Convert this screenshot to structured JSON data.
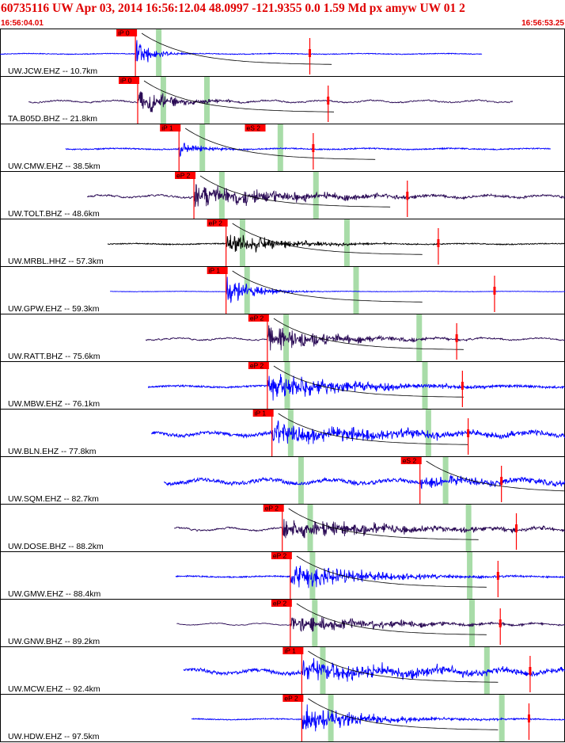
{
  "header": {
    "title": "60735116 UW Apr 03, 2014 16:56:12.04    48.0997 -121.9355  0.0 1.59 Md px amyw UW 01   2",
    "time_start": "16:56:04.01",
    "time_end": "16:56:53.25"
  },
  "colors": {
    "trace_blue": "#0000ff",
    "trace_purple": "#2a0a55",
    "trace_black": "#000000",
    "pick_box": "#ff0000",
    "pick_line": "#ff0000",
    "window_shade": "#a8dca8",
    "frame": "#000000"
  },
  "chart_data": {
    "type": "line",
    "title": "",
    "xlabel": "",
    "ylabel": "",
    "x_range": [
      "16:56:04.01",
      "16:56:53.25"
    ],
    "stations": [
      {
        "label": "UW.JCW.EHZ -- 10.7km",
        "distance_km": 10.7,
        "color": "blue",
        "pick": "iP 0",
        "pick_time_s": 11.8,
        "s_pick": "",
        "trace_start_s": 0.0,
        "trace_end_s": 42.0,
        "noise": 0.08,
        "amp": 1.0,
        "decay": 0.35,
        "freq": 1.3,
        "lp": 0.0,
        "window_times_s": [
          13.8
        ],
        "red_mark_s": 27.0
      },
      {
        "label": "TA.B05D.BHZ -- 21.8km",
        "distance_km": 21.8,
        "color": "purple",
        "pick": "iP 0",
        "pick_time_s": 12.0,
        "s_pick": "",
        "trace_start_s": 2.5,
        "trace_end_s": 44.7,
        "noise": 0.25,
        "amp": 0.8,
        "decay": 0.15,
        "freq": 0.45,
        "lp": 0.6,
        "window_times_s": [
          14.2,
          18.0
        ],
        "red_mark_s": 28.6
      },
      {
        "label": "UW.CMW.EHZ -- 38.5km",
        "distance_km": 38.5,
        "color": "blue",
        "pick": "iP 1",
        "pick_time_s": 15.6,
        "s_pick": "eS 2",
        "s_pick_time_s": 23.0,
        "trace_start_s": 5.7,
        "trace_end_s": 48.0,
        "noise": 0.12,
        "amp": 0.45,
        "decay": 0.25,
        "freq": 1.2,
        "lp": 0.0,
        "window_times_s": [
          17.6,
          24.4
        ],
        "red_mark_s": 27.3
      },
      {
        "label": "UW.TOLT.BHZ -- 48.6km",
        "distance_km": 48.6,
        "color": "purple",
        "pick": "eP 2",
        "pick_time_s": 16.9,
        "s_pick": "",
        "trace_start_s": 7.6,
        "trace_end_s": 50.0,
        "noise": 0.3,
        "amp": 0.7,
        "decay": 0.05,
        "freq": 0.5,
        "lp": 0.5,
        "window_times_s": [
          19.3,
          27.5
        ],
        "red_mark_s": 35.5
      },
      {
        "label": "UW.MRBL.HHZ -- 57.3km",
        "distance_km": 57.3,
        "color": "black",
        "pick": "eP 2",
        "pick_time_s": 19.7,
        "s_pick": "",
        "trace_start_s": 9.4,
        "trace_end_s": 51.6,
        "noise": 0.1,
        "amp": 0.7,
        "decay": 0.1,
        "freq": 1.2,
        "lp": 0.0,
        "window_times_s": [
          21.1,
          30.2
        ],
        "red_mark_s": 38.2
      },
      {
        "label": "UW.GPW.EHZ -- 59.3km",
        "distance_km": 59.3,
        "color": "blue",
        "pick": "iP 1",
        "pick_time_s": 19.7,
        "s_pick": "",
        "trace_start_s": 9.6,
        "trace_end_s": 51.8,
        "noise": 0.04,
        "amp": 0.9,
        "decay": 0.2,
        "freq": 1.3,
        "lp": 0.0,
        "window_times_s": [
          21.5,
          31.0
        ],
        "red_mark_s": 43.1
      },
      {
        "label": "UW.RATT.BHZ -- 75.6km",
        "distance_km": 75.6,
        "color": "purple",
        "pick": "eP 2",
        "pick_time_s": 23.3,
        "s_pick": "",
        "trace_start_s": 12.7,
        "trace_end_s": 55.1,
        "noise": 0.25,
        "amp": 0.75,
        "decay": 0.08,
        "freq": 0.45,
        "lp": 0.6,
        "window_times_s": [
          24.9,
          36.5
        ],
        "red_mark_s": 39.8
      },
      {
        "label": "UW.MBW.EHZ -- 76.1km",
        "distance_km": 76.1,
        "color": "blue",
        "pick": "eP 2",
        "pick_time_s": 23.3,
        "s_pick": "",
        "trace_start_s": 12.9,
        "trace_end_s": 55.2,
        "noise": 0.18,
        "amp": 0.8,
        "decay": 0.06,
        "freq": 1.2,
        "lp": 0.0,
        "window_times_s": [
          25.0,
          37.0
        ],
        "red_mark_s": 40.3
      },
      {
        "label": "UW.BLN.EHZ -- 77.8km",
        "distance_km": 77.8,
        "color": "blue",
        "pick": "iP 1",
        "pick_time_s": 23.7,
        "s_pick": "",
        "trace_start_s": 13.2,
        "trace_end_s": 55.5,
        "noise": 0.45,
        "amp": 0.65,
        "decay": 0.04,
        "freq": 1.0,
        "lp": 0.3,
        "window_times_s": [
          25.3,
          37.3
        ],
        "red_mark_s": 40.8
      },
      {
        "label": "UW.SQM.EHZ -- 82.7km",
        "distance_km": 82.7,
        "color": "blue",
        "pick": "eS 2",
        "pick_time_s": 36.6,
        "s_pick": "",
        "trace_start_s": 14.3,
        "trace_end_s": 56.4,
        "noise": 0.5,
        "amp": 0.3,
        "decay": 0.04,
        "freq": 1.0,
        "lp": 0.3,
        "window_times_s": [
          26.2,
          38.8
        ],
        "red_mark_s": 43.7
      },
      {
        "label": "UW.DOSE.BHZ -- 88.2km",
        "distance_km": 88.2,
        "color": "purple",
        "pick": "eP 2",
        "pick_time_s": 24.6,
        "s_pick": "",
        "trace_start_s": 15.2,
        "trace_end_s": 57.6,
        "noise": 0.32,
        "amp": 0.6,
        "decay": 0.04,
        "freq": 0.5,
        "lp": 0.6,
        "window_times_s": [
          27.0,
          40.8
        ],
        "red_mark_s": 45.0
      },
      {
        "label": "UW.GMW.EHZ -- 88.4km",
        "distance_km": 88.4,
        "color": "blue",
        "pick": "eP 2",
        "pick_time_s": 25.3,
        "s_pick": "",
        "trace_start_s": 15.3,
        "trace_end_s": 57.7,
        "noise": 0.12,
        "amp": 0.8,
        "decay": 0.07,
        "freq": 1.2,
        "lp": 0.0,
        "window_times_s": [
          27.2,
          40.9
        ],
        "red_mark_s": 43.4
      },
      {
        "label": "UW.GNW.BHZ -- 89.2km",
        "distance_km": 89.2,
        "color": "purple",
        "pick": "eP 2",
        "pick_time_s": 25.3,
        "s_pick": "",
        "trace_start_s": 15.4,
        "trace_end_s": 57.8,
        "noise": 0.25,
        "amp": 0.5,
        "decay": 0.05,
        "freq": 0.5,
        "lp": 0.8,
        "window_times_s": [
          27.4,
          41.1
        ],
        "red_mark_s": 43.6
      },
      {
        "label": "UW.MCW.EHZ -- 92.4km",
        "distance_km": 92.4,
        "color": "blue",
        "pick": "iP 1",
        "pick_time_s": 26.3,
        "s_pick": "",
        "trace_start_s": 16.0,
        "trace_end_s": 58.3,
        "noise": 0.5,
        "amp": 0.65,
        "decay": 0.04,
        "freq": 1.0,
        "lp": 0.35,
        "window_times_s": [
          28.1,
          42.4
        ],
        "red_mark_s": 46.2
      },
      {
        "label": "UW.HDW.EHZ -- 97.5km",
        "distance_km": 97.5,
        "color": "blue",
        "pick": "eP 2",
        "pick_time_s": 26.3,
        "s_pick": "",
        "trace_start_s": 16.7,
        "trace_end_s": 58.9,
        "noise": 0.1,
        "amp": 0.85,
        "decay": 0.08,
        "freq": 1.2,
        "lp": 0.0,
        "window_times_s": [
          28.8,
          43.7
        ],
        "red_mark_s": 46.1
      }
    ]
  }
}
